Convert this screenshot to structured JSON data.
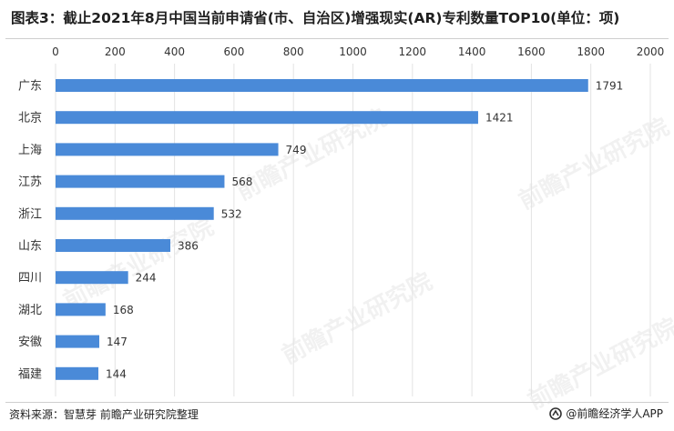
{
  "title": "图表3：截止2021年8月中国当前申请省(市、自治区)增强现实(AR)专利数量TOP10(单位：项)",
  "source": "资料来源：智慧芽 前瞻产业研究院整理",
  "brand": "@前瞻经济学人APP",
  "watermark": "前瞻产业研究院",
  "colors": {
    "bar": "#4a8ad8",
    "grid": "#e3e3e3",
    "text": "#333333"
  },
  "chart_data": {
    "type": "bar",
    "orientation": "horizontal",
    "categories": [
      "广东",
      "北京",
      "上海",
      "江苏",
      "浙江",
      "山东",
      "四川",
      "湖北",
      "安徽",
      "福建"
    ],
    "values": [
      1791,
      1421,
      749,
      568,
      532,
      386,
      244,
      168,
      147,
      144
    ],
    "xlim": [
      0,
      2000
    ],
    "xticks": [
      0,
      200,
      400,
      600,
      800,
      1000,
      1200,
      1400,
      1600,
      1800,
      2000
    ],
    "axis_position": "top",
    "grid": true
  }
}
